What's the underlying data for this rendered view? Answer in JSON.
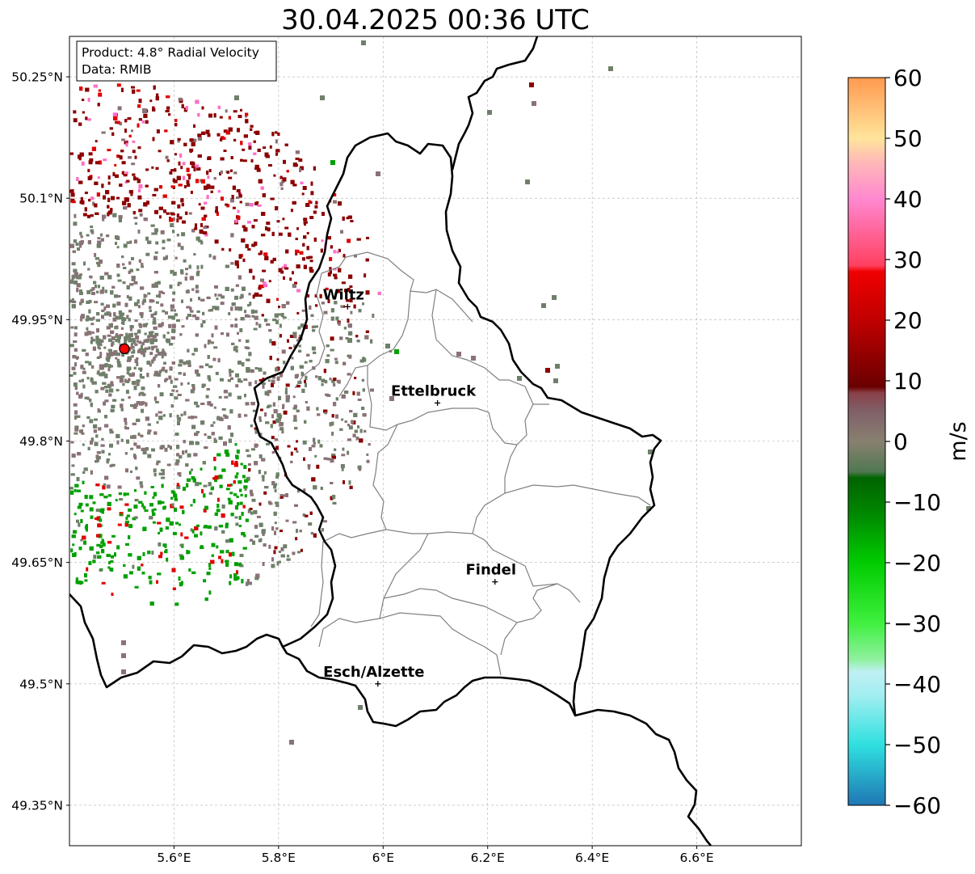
{
  "title": "30.04.2025 00:36 UTC",
  "info": {
    "product_line": "Product: 4.8° Radial Velocity",
    "data_line": "Data: RMIB"
  },
  "map": {
    "lon_range": [
      5.4,
      6.8
    ],
    "lat_range": [
      49.3,
      50.3
    ],
    "lon_ticks": [
      {
        "value": 5.6,
        "label": "5.6°E"
      },
      {
        "value": 5.8,
        "label": "5.8°E"
      },
      {
        "value": 6.0,
        "label": "6°E"
      },
      {
        "value": 6.2,
        "label": "6.2°E"
      },
      {
        "value": 6.4,
        "label": "6.4°E"
      },
      {
        "value": 6.6,
        "label": "6.6°E"
      }
    ],
    "lat_ticks": [
      {
        "value": 50.25,
        "label": "50.25°N"
      },
      {
        "value": 50.1,
        "label": "50.1°N"
      },
      {
        "value": 49.95,
        "label": "49.95°N"
      },
      {
        "value": 49.8,
        "label": "49.8°N"
      },
      {
        "value": 49.65,
        "label": "49.65°N"
      },
      {
        "value": 49.5,
        "label": "49.5°N"
      },
      {
        "value": 49.35,
        "label": "49.35°N"
      }
    ],
    "grid": true,
    "radar_site": {
      "lon": 5.505,
      "lat": 49.914
    },
    "cities": [
      {
        "name": "Wiltz",
        "lon": 5.932,
        "lat": 49.966
      },
      {
        "name": "Ettelbruck",
        "lon": 6.104,
        "lat": 49.847
      },
      {
        "name": "Findel",
        "lon": 6.214,
        "lat": 49.626
      },
      {
        "name": "Esch/Alzette",
        "lon": 5.99,
        "lat": 49.5
      }
    ],
    "border_color": "#000000",
    "admin_color": "#808080"
  },
  "colorbar": {
    "label": "m/s",
    "min": -60,
    "max": 60,
    "ticks": [
      {
        "value": 60,
        "label": "60"
      },
      {
        "value": 50,
        "label": "50"
      },
      {
        "value": 40,
        "label": "40"
      },
      {
        "value": 30,
        "label": "30"
      },
      {
        "value": 20,
        "label": "20"
      },
      {
        "value": 10,
        "label": "10"
      },
      {
        "value": 0,
        "label": "0"
      },
      {
        "value": -10,
        "label": "−10"
      },
      {
        "value": -20,
        "label": "−20"
      },
      {
        "value": -30,
        "label": "−30"
      },
      {
        "value": -40,
        "label": "−40"
      },
      {
        "value": -50,
        "label": "−50"
      },
      {
        "value": -60,
        "label": "−60"
      }
    ],
    "stops": [
      {
        "value": -60,
        "color": "#1f77b4"
      },
      {
        "value": -50,
        "color": "#2fe0e0"
      },
      {
        "value": -42,
        "color": "#a0eef0"
      },
      {
        "value": -38,
        "color": "#c0f0f4"
      },
      {
        "value": -36,
        "color": "#90f0a0"
      },
      {
        "value": -30,
        "color": "#40f040"
      },
      {
        "value": -20,
        "color": "#00cc00"
      },
      {
        "value": -12,
        "color": "#008800"
      },
      {
        "value": -6,
        "color": "#006400"
      },
      {
        "value": -5,
        "color": "#507850"
      },
      {
        "value": 0,
        "color": "#888070"
      },
      {
        "value": 5,
        "color": "#806068"
      },
      {
        "value": 8,
        "color": "#8a4048"
      },
      {
        "value": 9,
        "color": "#6a0000"
      },
      {
        "value": 20,
        "color": "#c00000"
      },
      {
        "value": 28,
        "color": "#f00000"
      },
      {
        "value": 29,
        "color": "#ff4060"
      },
      {
        "value": 40,
        "color": "#ff88d0"
      },
      {
        "value": 46,
        "color": "#ffb8b8"
      },
      {
        "value": 50,
        "color": "#ffe49a"
      },
      {
        "value": 60,
        "color": "#ff9a50"
      }
    ]
  },
  "echo_colors": {
    "approaching": "#00a000",
    "near_zero": "#6f806a",
    "near_zero_alt": "#8a7276",
    "receding": "#8b0000",
    "receding_bright": "#e00000",
    "pink": "#ff6ec7"
  }
}
